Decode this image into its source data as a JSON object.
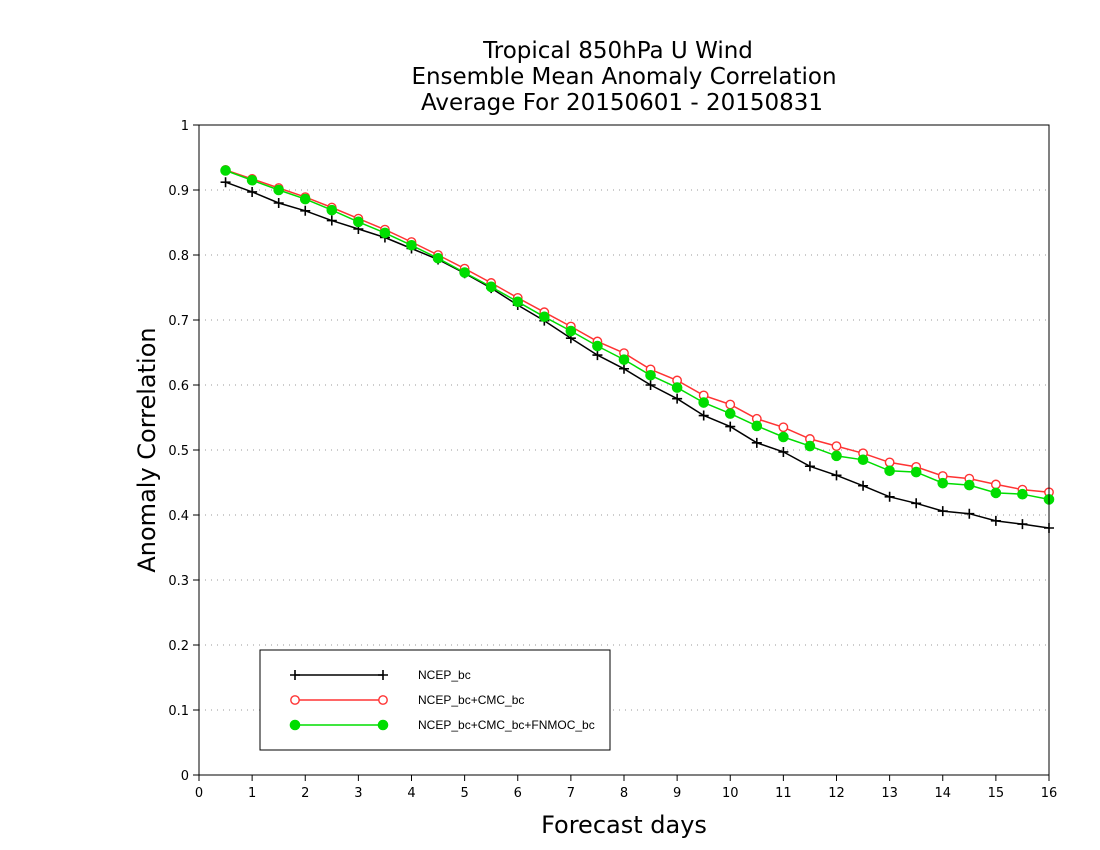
{
  "chart_data": {
    "type": "line",
    "title": [
      "Tropical 850hPa U Wind",
      "Ensemble Mean Anomaly Correlation",
      "Average For 20150601 - 20150831"
    ],
    "xlabel": "Forecast days",
    "ylabel": "Anomaly Correlation",
    "xlim": [
      0,
      16
    ],
    "ylim": [
      0,
      1
    ],
    "xticks": [
      "0",
      "1",
      "2",
      "3",
      "4",
      "5",
      "6",
      "7",
      "8",
      "9",
      "10",
      "11",
      "12",
      "13",
      "14",
      "15",
      "16"
    ],
    "yticks": [
      "0",
      "0.1",
      "0.2",
      "0.3",
      "0.4",
      "0.5",
      "0.6",
      "0.7",
      "0.8",
      "0.9",
      "1"
    ],
    "grid": "horizontal dotted",
    "legend_position": "bottom-left",
    "x": [
      0.5,
      1,
      1.5,
      2,
      2.5,
      3,
      3.5,
      4,
      4.5,
      5,
      5.5,
      6,
      6.5,
      7,
      7.5,
      8,
      8.5,
      9,
      9.5,
      10,
      10.5,
      11,
      11.5,
      12,
      12.5,
      13,
      13.5,
      14,
      14.5,
      15,
      15.5,
      16
    ],
    "series": [
      {
        "name": "NCEP_bc",
        "color": "#000000",
        "marker": "plus",
        "values": [
          0.912,
          0.897,
          0.88,
          0.868,
          0.853,
          0.84,
          0.827,
          0.81,
          0.793,
          0.772,
          0.749,
          0.723,
          0.699,
          0.672,
          0.646,
          0.625,
          0.6,
          0.579,
          0.553,
          0.536,
          0.511,
          0.497,
          0.475,
          0.461,
          0.445,
          0.428,
          0.418,
          0.406,
          0.402,
          0.391,
          0.386,
          0.38
        ]
      },
      {
        "name": "NCEP_bc+CMC_bc",
        "color": "#ff3333",
        "marker": "open-circle",
        "values": [
          0.931,
          0.917,
          0.903,
          0.889,
          0.873,
          0.856,
          0.839,
          0.82,
          0.8,
          0.779,
          0.757,
          0.734,
          0.712,
          0.69,
          0.667,
          0.649,
          0.624,
          0.607,
          0.584,
          0.57,
          0.548,
          0.535,
          0.517,
          0.506,
          0.495,
          0.481,
          0.474,
          0.46,
          0.456,
          0.447,
          0.439,
          0.435
        ]
      },
      {
        "name": "NCEP_bc+CMC_bc+FNMOC_bc",
        "color": "#00dd00",
        "marker": "filled-circle",
        "values": [
          0.93,
          0.915,
          0.9,
          0.886,
          0.869,
          0.851,
          0.834,
          0.815,
          0.795,
          0.773,
          0.751,
          0.728,
          0.705,
          0.683,
          0.66,
          0.639,
          0.615,
          0.596,
          0.573,
          0.556,
          0.537,
          0.52,
          0.506,
          0.491,
          0.485,
          0.468,
          0.466,
          0.449,
          0.446,
          0.434,
          0.432,
          0.424
        ]
      }
    ]
  }
}
